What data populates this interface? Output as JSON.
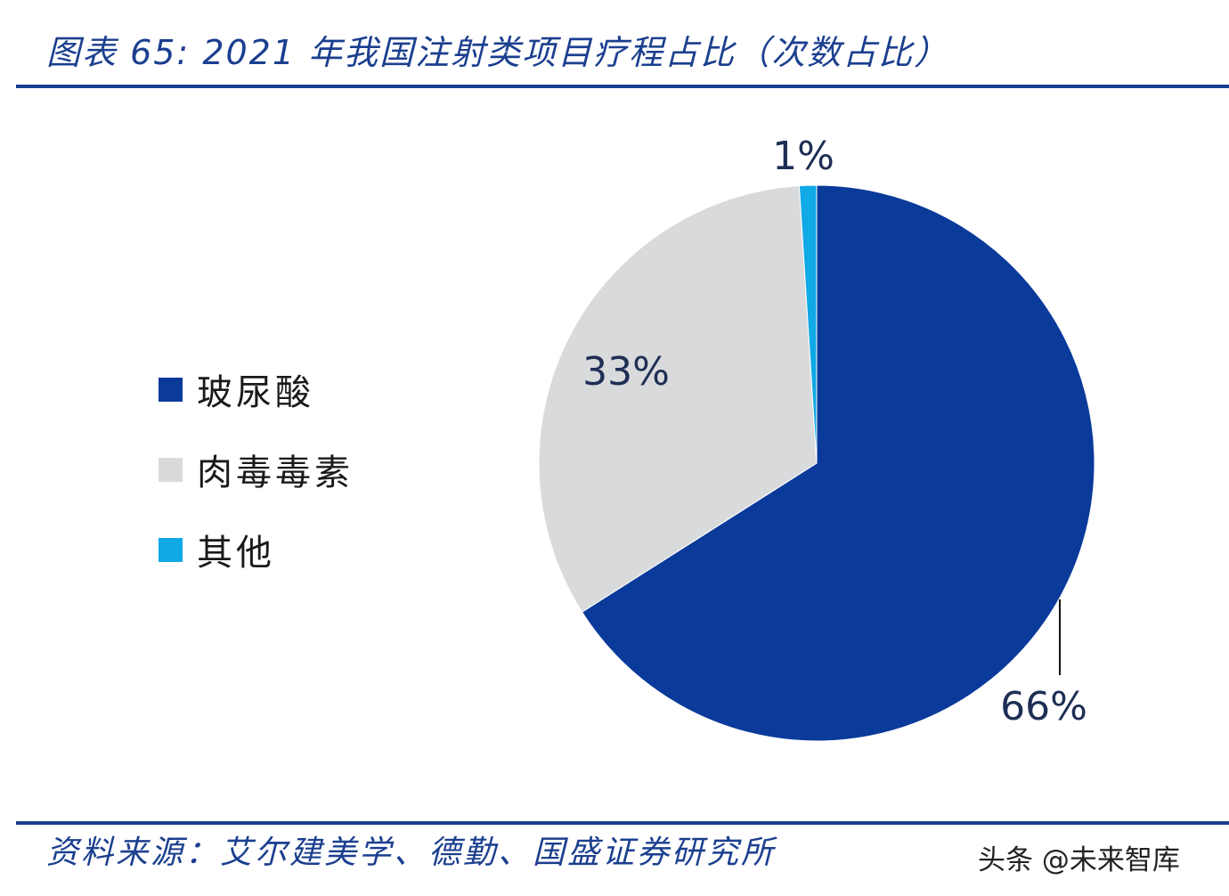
{
  "title": "图表 65:  2021 年我国注射类项目疗程占比（次数占比）",
  "source": "资料来源：艾尔建美学、德勤、国盛证券研究所",
  "watermark": "头条 @未来智库",
  "chart_data": {
    "type": "pie",
    "title": "2021 年我国注射类项目疗程占比（次数占比）",
    "categories": [
      "玻尿酸",
      "肉毒毒素",
      "其他"
    ],
    "values": [
      66,
      33,
      1
    ],
    "labels": [
      "66%",
      "33%",
      "1%"
    ],
    "colors": [
      "#0a3a9a",
      "#d9dadc",
      "#11a8e6"
    ],
    "legend_position": "left",
    "start_angle": "12 o'clock",
    "direction": "clockwise"
  }
}
